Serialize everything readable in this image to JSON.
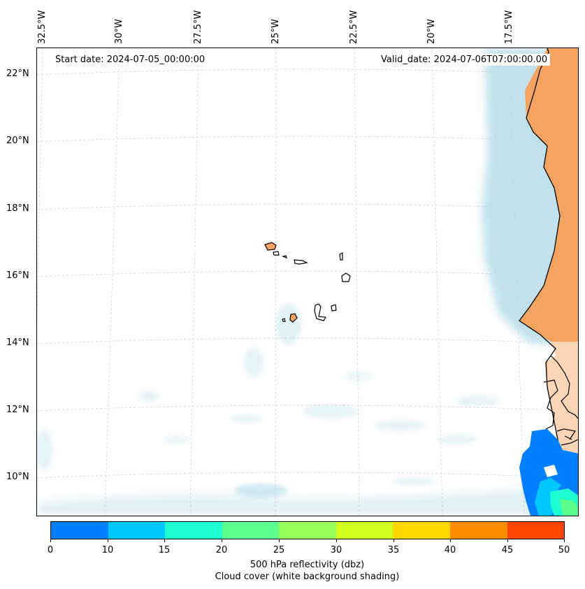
{
  "map": {
    "start_date": "Start date: 2024-07-05_00:00:00",
    "valid_date": "Valid_date: 2024-07-06T07:00:00.00",
    "lon_labels": [
      "32.5°W",
      "30°W",
      "27.5°W",
      "25°W",
      "22.5°W",
      "20°W",
      "17.5°W"
    ],
    "lat_labels": [
      "22°N",
      "20°N",
      "18°N",
      "16°N",
      "14°N",
      "12°N",
      "10°N"
    ],
    "colors": {
      "land": "#f4a460",
      "cloud": "#add8e6",
      "coast": "#000000",
      "grid": "#cccccc"
    }
  },
  "colorbar": {
    "ticks": [
      "0",
      "10",
      "15",
      "20",
      "25",
      "30",
      "35",
      "40",
      "45",
      "50"
    ],
    "colors": [
      "#0080ff",
      "#00c8ff",
      "#1effd2",
      "#5aff8c",
      "#96ff5a",
      "#d2ff1e",
      "#ffd700",
      "#ff8c00",
      "#ff4500"
    ],
    "title": "500 hPa reflectivity (dbz)",
    "subtitle": "Cloud cover (white background shading)"
  }
}
